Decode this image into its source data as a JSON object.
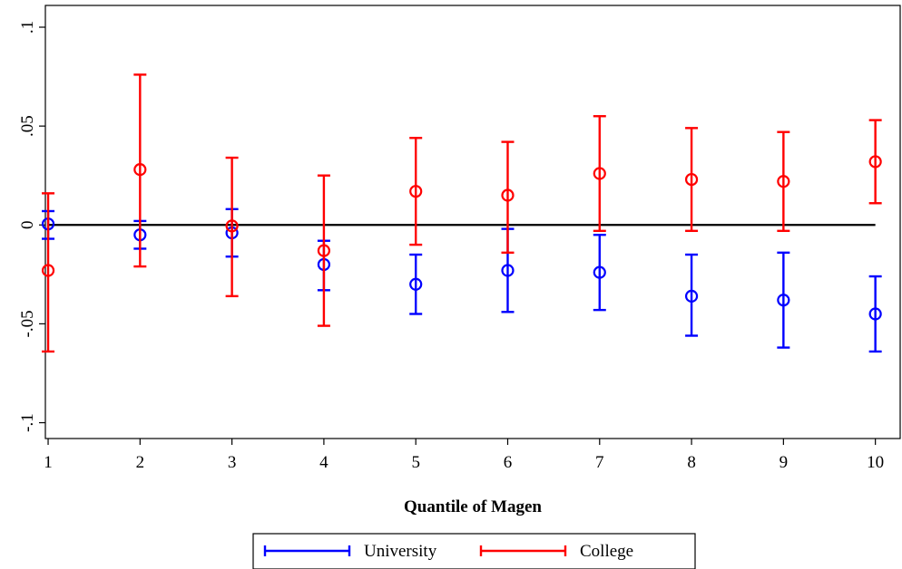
{
  "chart_data": {
    "type": "scatter",
    "title": "",
    "xlabel": "Quantile of Magen",
    "ylabel": "",
    "x": [
      1,
      2,
      3,
      4,
      5,
      6,
      7,
      8,
      9,
      10
    ],
    "xlim": [
      0.97,
      10.27
    ],
    "ylim": [
      -0.108,
      0.111
    ],
    "xticks": [
      1,
      2,
      3,
      4,
      5,
      6,
      7,
      8,
      9,
      10
    ],
    "xtick_labels": [
      "1",
      "2",
      "3",
      "4",
      "5",
      "6",
      "7",
      "8",
      "9",
      "10"
    ],
    "yticks": [
      -0.1,
      -0.05,
      0,
      0.05,
      0.1
    ],
    "ytick_labels": [
      "-.1",
      "-.05",
      "0",
      ".05",
      ".1"
    ],
    "reference_line": 0,
    "grid": false,
    "legend_position": "bottom",
    "series": [
      {
        "name": "University",
        "color": "#0000ff",
        "values": [
          0.0005,
          -0.005,
          -0.004,
          -0.02,
          -0.03,
          -0.023,
          -0.024,
          -0.036,
          -0.038,
          -0.045
        ],
        "ci_low": [
          -0.007,
          -0.012,
          -0.016,
          -0.033,
          -0.045,
          -0.044,
          -0.043,
          -0.056,
          -0.062,
          -0.064
        ],
        "ci_high": [
          0.007,
          0.002,
          0.008,
          -0.008,
          -0.015,
          -0.002,
          -0.005,
          -0.015,
          -0.014,
          -0.026
        ]
      },
      {
        "name": "College",
        "color": "#ff0000",
        "values": [
          -0.023,
          0.028,
          -0.0005,
          -0.013,
          0.017,
          0.015,
          0.026,
          0.023,
          0.022,
          0.032
        ],
        "ci_low": [
          -0.064,
          -0.021,
          -0.036,
          -0.051,
          -0.01,
          -0.014,
          -0.003,
          -0.003,
          -0.003,
          0.011
        ],
        "ci_high": [
          0.016,
          0.076,
          0.034,
          0.025,
          0.044,
          0.042,
          0.055,
          0.049,
          0.047,
          0.053
        ]
      }
    ]
  }
}
